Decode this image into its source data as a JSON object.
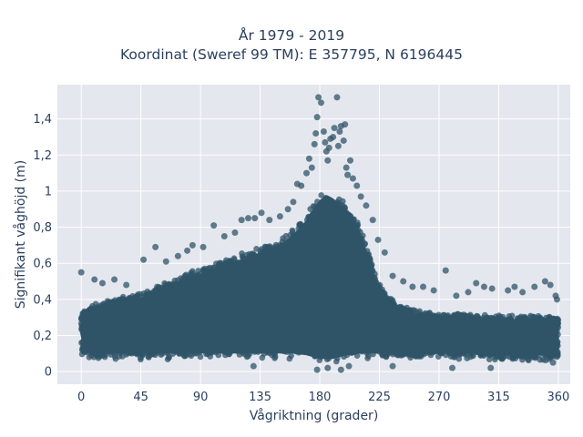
{
  "chart_data": {
    "type": "scatter",
    "title": "År 1979 - 2019",
    "subtitle": "Koordinat (Sweref 99 TM): E 357795, N 6196445",
    "xlabel": "Vågriktning (grader)",
    "ylabel": "Signifikant våghöjd (m)",
    "xlim": [
      -18,
      369
    ],
    "ylim": [
      -0.07,
      1.59
    ],
    "x_ticks": [
      0,
      45,
      90,
      135,
      180,
      225,
      270,
      315,
      360
    ],
    "x_tick_labels": [
      "0",
      "45",
      "90",
      "135",
      "180",
      "225",
      "270",
      "315",
      "360"
    ],
    "y_ticks": [
      0,
      0.2,
      0.4,
      0.6,
      0.8,
      1.0,
      1.2,
      1.4
    ],
    "y_tick_labels": [
      "0",
      "0,2",
      "0,4",
      "0,6",
      "0,8",
      "1",
      "1,2",
      "1,4"
    ],
    "grid": true,
    "marker_color": "#2f5468",
    "background_color": "#e5e7ef",
    "dense_envelope": {
      "x": [
        0,
        10,
        20,
        30,
        45,
        60,
        75,
        90,
        105,
        120,
        135,
        150,
        160,
        170,
        175,
        180,
        185,
        190,
        195,
        200,
        205,
        210,
        215,
        220,
        225,
        230,
        240,
        250,
        260,
        270,
        285,
        300,
        315,
        330,
        345,
        360
      ],
      "upper": [
        0.33,
        0.36,
        0.38,
        0.4,
        0.43,
        0.47,
        0.52,
        0.56,
        0.6,
        0.64,
        0.68,
        0.72,
        0.78,
        0.86,
        0.92,
        0.97,
        1.0,
        0.98,
        0.95,
        0.92,
        0.87,
        0.8,
        0.7,
        0.58,
        0.48,
        0.42,
        0.36,
        0.33,
        0.32,
        0.31,
        0.31,
        0.3,
        0.3,
        0.3,
        0.3,
        0.3
      ],
      "lower": [
        0.08,
        0.08,
        0.08,
        0.08,
        0.08,
        0.08,
        0.08,
        0.08,
        0.08,
        0.08,
        0.08,
        0.08,
        0.08,
        0.07,
        0.06,
        0.05,
        0.05,
        0.05,
        0.06,
        0.07,
        0.07,
        0.08,
        0.08,
        0.08,
        0.08,
        0.08,
        0.08,
        0.08,
        0.08,
        0.08,
        0.08,
        0.08,
        0.07,
        0.07,
        0.07,
        0.07
      ]
    },
    "outlier_points": [
      {
        "x": 0,
        "y": 0.55
      },
      {
        "x": 10,
        "y": 0.51
      },
      {
        "x": 16,
        "y": 0.49
      },
      {
        "x": 25,
        "y": 0.51
      },
      {
        "x": 34,
        "y": 0.48
      },
      {
        "x": 47,
        "y": 0.62
      },
      {
        "x": 56,
        "y": 0.69
      },
      {
        "x": 64,
        "y": 0.61
      },
      {
        "x": 73,
        "y": 0.64
      },
      {
        "x": 80,
        "y": 0.67
      },
      {
        "x": 84,
        "y": 0.7
      },
      {
        "x": 92,
        "y": 0.69
      },
      {
        "x": 100,
        "y": 0.81
      },
      {
        "x": 108,
        "y": 0.75
      },
      {
        "x": 116,
        "y": 0.77
      },
      {
        "x": 121,
        "y": 0.84
      },
      {
        "x": 126,
        "y": 0.85
      },
      {
        "x": 131,
        "y": 0.85
      },
      {
        "x": 136,
        "y": 0.88
      },
      {
        "x": 142,
        "y": 0.84
      },
      {
        "x": 150,
        "y": 0.86
      },
      {
        "x": 156,
        "y": 0.9
      },
      {
        "x": 160,
        "y": 0.94
      },
      {
        "x": 163,
        "y": 1.04
      },
      {
        "x": 166,
        "y": 1.03
      },
      {
        "x": 170,
        "y": 1.1
      },
      {
        "x": 172,
        "y": 1.18
      },
      {
        "x": 174,
        "y": 1.13
      },
      {
        "x": 176,
        "y": 1.26
      },
      {
        "x": 177,
        "y": 1.32
      },
      {
        "x": 178,
        "y": 1.41
      },
      {
        "x": 179,
        "y": 1.52
      },
      {
        "x": 181,
        "y": 1.49
      },
      {
        "x": 183,
        "y": 1.33
      },
      {
        "x": 184,
        "y": 1.27
      },
      {
        "x": 185,
        "y": 1.22
      },
      {
        "x": 186,
        "y": 1.17
      },
      {
        "x": 187,
        "y": 1.24
      },
      {
        "x": 188,
        "y": 1.29
      },
      {
        "x": 190,
        "y": 1.3
      },
      {
        "x": 191,
        "y": 1.35
      },
      {
        "x": 193,
        "y": 1.52
      },
      {
        "x": 194,
        "y": 1.25
      },
      {
        "x": 195,
        "y": 1.33
      },
      {
        "x": 196,
        "y": 1.36
      },
      {
        "x": 198,
        "y": 1.28
      },
      {
        "x": 199,
        "y": 1.37
      },
      {
        "x": 200,
        "y": 1.13
      },
      {
        "x": 201,
        "y": 1.09
      },
      {
        "x": 203,
        "y": 1.17
      },
      {
        "x": 205,
        "y": 1.07
      },
      {
        "x": 208,
        "y": 1.03
      },
      {
        "x": 211,
        "y": 0.97
      },
      {
        "x": 215,
        "y": 0.92
      },
      {
        "x": 220,
        "y": 0.84
      },
      {
        "x": 224,
        "y": 0.73
      },
      {
        "x": 229,
        "y": 0.66
      },
      {
        "x": 235,
        "y": 0.53
      },
      {
        "x": 243,
        "y": 0.5
      },
      {
        "x": 250,
        "y": 0.47
      },
      {
        "x": 258,
        "y": 0.47
      },
      {
        "x": 266,
        "y": 0.45
      },
      {
        "x": 275,
        "y": 0.56
      },
      {
        "x": 283,
        "y": 0.42
      },
      {
        "x": 292,
        "y": 0.44
      },
      {
        "x": 298,
        "y": 0.49
      },
      {
        "x": 304,
        "y": 0.47
      },
      {
        "x": 310,
        "y": 0.46
      },
      {
        "x": 322,
        "y": 0.45
      },
      {
        "x": 327,
        "y": 0.47
      },
      {
        "x": 333,
        "y": 0.44
      },
      {
        "x": 342,
        "y": 0.47
      },
      {
        "x": 350,
        "y": 0.5
      },
      {
        "x": 354,
        "y": 0.48
      },
      {
        "x": 358,
        "y": 0.42
      },
      {
        "x": 359,
        "y": 0.4
      },
      {
        "x": 178,
        "y": 0.01
      },
      {
        "x": 186,
        "y": 0.02
      },
      {
        "x": 196,
        "y": 0.01
      },
      {
        "x": 202,
        "y": 0.03
      },
      {
        "x": 280,
        "y": 0.02
      },
      {
        "x": 309,
        "y": 0.02
      },
      {
        "x": 235,
        "y": 0.03
      },
      {
        "x": 130,
        "y": 0.03
      },
      {
        "x": 356,
        "y": 0.05
      }
    ]
  }
}
